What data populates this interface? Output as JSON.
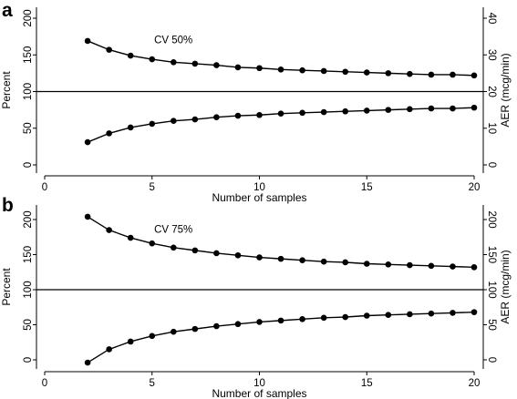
{
  "chart_data": [
    {
      "type": "line",
      "panel_label": "a",
      "annotation": "CV 50%",
      "xlabel": "Number of samples",
      "ylabel": "Percent",
      "ylabel_right": "AER (mcg/min)",
      "xlim": [
        0,
        20
      ],
      "ylim": [
        0,
        200
      ],
      "ylim_right": [
        0,
        40
      ],
      "x_ticks": [
        0,
        5,
        10,
        15,
        20
      ],
      "y_ticks": [
        0,
        50,
        100,
        150,
        200
      ],
      "y_ticks_right": [
        0,
        10,
        20,
        30,
        40
      ],
      "reference_line": 100,
      "grid": false,
      "x": [
        2,
        3,
        4,
        5,
        6,
        7,
        8,
        9,
        10,
        11,
        12,
        13,
        14,
        15,
        16,
        17,
        18,
        19,
        20
      ],
      "series": [
        {
          "values": [
            169,
            157,
            149,
            144,
            140,
            138,
            136,
            133,
            132,
            130,
            129,
            128,
            127,
            126,
            125,
            124,
            123,
            123,
            122
          ]
        },
        {
          "values": [
            31,
            43,
            51,
            56,
            60,
            62,
            65,
            67,
            68,
            70,
            71,
            72,
            73,
            74,
            75,
            76,
            77,
            77,
            78
          ]
        }
      ]
    },
    {
      "type": "line",
      "panel_label": "b",
      "annotation": "CV 75%",
      "xlabel": "Number of samples",
      "ylabel": "Percent",
      "ylabel_right": "AER (mcg/min)",
      "xlim": [
        0,
        20
      ],
      "ylim": [
        0,
        200
      ],
      "ylim_right": [
        0,
        200
      ],
      "x_ticks": [
        0,
        5,
        10,
        15,
        20
      ],
      "y_ticks": [
        0,
        50,
        100,
        150,
        200
      ],
      "y_ticks_right": [
        0,
        50,
        100,
        150,
        200
      ],
      "reference_line": 100,
      "grid": false,
      "x": [
        2,
        3,
        4,
        5,
        6,
        7,
        8,
        9,
        10,
        11,
        12,
        13,
        14,
        15,
        16,
        17,
        18,
        19,
        20
      ],
      "series": [
        {
          "values": [
            204,
            185,
            174,
            166,
            160,
            156,
            152,
            149,
            146,
            144,
            142,
            140,
            139,
            137,
            136,
            135,
            134,
            133,
            132
          ]
        },
        {
          "values": [
            -4,
            15,
            26,
            34,
            40,
            44,
            48,
            51,
            54,
            56,
            58,
            60,
            61,
            63,
            64,
            65,
            66,
            67,
            68
          ]
        }
      ]
    }
  ]
}
